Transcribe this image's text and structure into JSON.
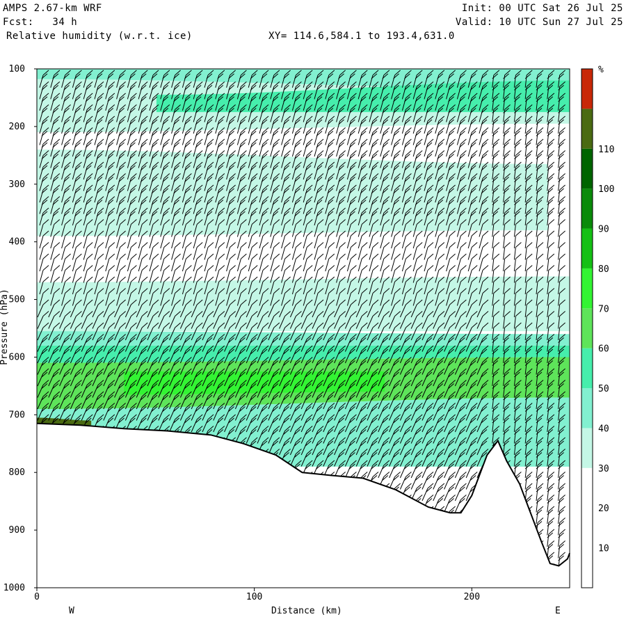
{
  "header": {
    "model": "AMPS 2.67-km WRF",
    "forecast": "Fcst:   34 h",
    "field": "Relative humidity (w.r.t. ice)",
    "xy": "XY= 114.6,584.1 to 193.4,631.0",
    "init": "Init: 00 UTC Sat 26 Jul 25",
    "valid": "Valid: 10 UTC Sun 27 Jul 25"
  },
  "chart_data": {
    "type": "heatmap",
    "title": "Relative humidity (w.r.t. ice)",
    "xlabel": "Distance (km)",
    "ylabel": "Pressure (hPa)",
    "xlim": [
      0,
      245
    ],
    "ylim": [
      1000,
      100
    ],
    "x_ticks": [
      0,
      100,
      200
    ],
    "y_ticks": [
      100,
      200,
      300,
      400,
      500,
      600,
      700,
      800,
      900,
      1000
    ],
    "x_end_labels": {
      "left": "W",
      "right": "E"
    },
    "colorbar": {
      "unit": "%",
      "ticks": [
        10,
        20,
        30,
        40,
        50,
        60,
        70,
        80,
        90,
        100,
        110
      ],
      "bins": [
        {
          "from": 0,
          "to": 30,
          "color": "#ffffff"
        },
        {
          "from": 30,
          "to": 40,
          "color": "#c4f7e6"
        },
        {
          "from": 40,
          "to": 50,
          "color": "#82f0d0"
        },
        {
          "from": 50,
          "to": 60,
          "color": "#46eeac"
        },
        {
          "from": 60,
          "to": 70,
          "color": "#5ee45a"
        },
        {
          "from": 70,
          "to": 80,
          "color": "#33f433"
        },
        {
          "from": 80,
          "to": 90,
          "color": "#15c015"
        },
        {
          "from": 90,
          "to": 100,
          "color": "#0a8a0a"
        },
        {
          "from": 100,
          "to": 110,
          "color": "#006400"
        },
        {
          "from": 110,
          "to": 120,
          "color": "#4a6a12"
        },
        {
          "from": 120,
          "to": 130,
          "color": "#c82808"
        }
      ]
    },
    "layers": [
      {
        "range": "40-50",
        "x": [
          0,
          245
        ],
        "p_top": [
          100,
          100
        ],
        "p_bottom": [
          118,
          135
        ]
      },
      {
        "range": "30-40",
        "x": [
          0,
          245
        ],
        "p_top": [
          118,
          135
        ],
        "p_bottom": [
          210,
          195
        ]
      },
      {
        "range": "50-60",
        "x": [
          55,
          245
        ],
        "p_top": [
          145,
          120
        ],
        "p_bottom": [
          175,
          175
        ]
      },
      {
        "range": "30-40",
        "x": [
          0,
          235
        ],
        "p_top": [
          240,
          265
        ],
        "p_bottom": [
          390,
          380
        ]
      },
      {
        "range": "30-40",
        "x": [
          0,
          245
        ],
        "p_top": [
          470,
          460
        ],
        "p_bottom": [
          555,
          555
        ]
      },
      {
        "range": "40-50",
        "x": [
          0,
          245
        ],
        "p_top": [
          555,
          560
        ],
        "p_bottom": [
          580,
          580
        ]
      },
      {
        "range": "50-60",
        "x": [
          0,
          245
        ],
        "p_top": [
          580,
          580
        ],
        "p_bottom": [
          610,
          600
        ]
      },
      {
        "range": "60-70",
        "x": [
          0,
          245
        ],
        "p_top": [
          610,
          600
        ],
        "p_bottom": [
          690,
          670
        ]
      },
      {
        "range": "70-80",
        "x": [
          40,
          160
        ],
        "p_top": [
          625,
          625
        ],
        "p_bottom": [
          665,
          660
        ]
      },
      {
        "range": "40-50",
        "x": [
          0,
          245
        ],
        "p_top": [
          690,
          670
        ],
        "p_bottom": [
          790,
          790
        ]
      },
      {
        "range": "110-120",
        "x": [
          0,
          25
        ],
        "p_top": [
          705,
          710
        ],
        "p_bottom": [
          720,
          718
        ]
      }
    ],
    "terrain": {
      "x": [
        0,
        20,
        40,
        60,
        80,
        95,
        110,
        122,
        135,
        150,
        165,
        180,
        190,
        195,
        200,
        207,
        212,
        216,
        222,
        227,
        232,
        236,
        240,
        244,
        245
      ],
      "p": [
        715,
        718,
        724,
        728,
        735,
        750,
        770,
        800,
        805,
        810,
        830,
        860,
        870,
        870,
        840,
        770,
        745,
        780,
        820,
        870,
        920,
        958,
        962,
        950,
        940
      ]
    }
  }
}
